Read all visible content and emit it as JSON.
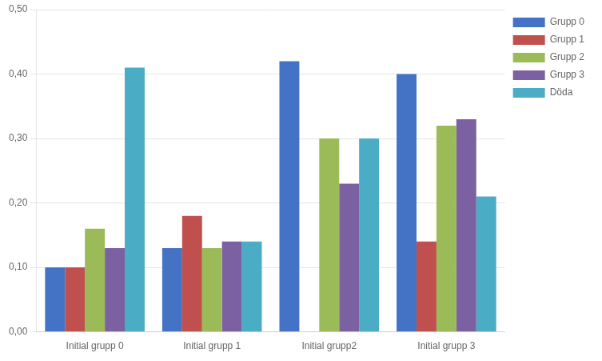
{
  "chart_data": {
    "type": "bar",
    "categories": [
      "Initial grupp 0",
      "Initial grupp 1",
      "Initial grupp2",
      "Initial grupp 3"
    ],
    "series": [
      {
        "name": "Grupp 0",
        "color": "#4472C4",
        "values": [
          0.1,
          0.13,
          0.42,
          0.4
        ]
      },
      {
        "name": "Grupp 1",
        "color": "#C0504D",
        "values": [
          0.1,
          0.18,
          0.0,
          0.14
        ]
      },
      {
        "name": "Grupp 2",
        "color": "#9BBB59",
        "values": [
          0.16,
          0.13,
          0.3,
          0.32
        ]
      },
      {
        "name": "Grupp 3",
        "color": "#7B60A2",
        "values": [
          0.13,
          0.14,
          0.23,
          0.33
        ]
      },
      {
        "name": "Döda",
        "color": "#4BACC6",
        "values": [
          0.41,
          0.14,
          0.3,
          0.21
        ]
      }
    ],
    "ylim": [
      0.0,
      0.5
    ],
    "yticks": [
      {
        "value": 0.0,
        "label": "0,00"
      },
      {
        "value": 0.1,
        "label": "0,10"
      },
      {
        "value": 0.2,
        "label": "0,20"
      },
      {
        "value": 0.3,
        "label": "0,30"
      },
      {
        "value": 0.4,
        "label": "0,40"
      },
      {
        "value": 0.5,
        "label": "0,50"
      }
    ],
    "grid": true,
    "legend": "right"
  }
}
